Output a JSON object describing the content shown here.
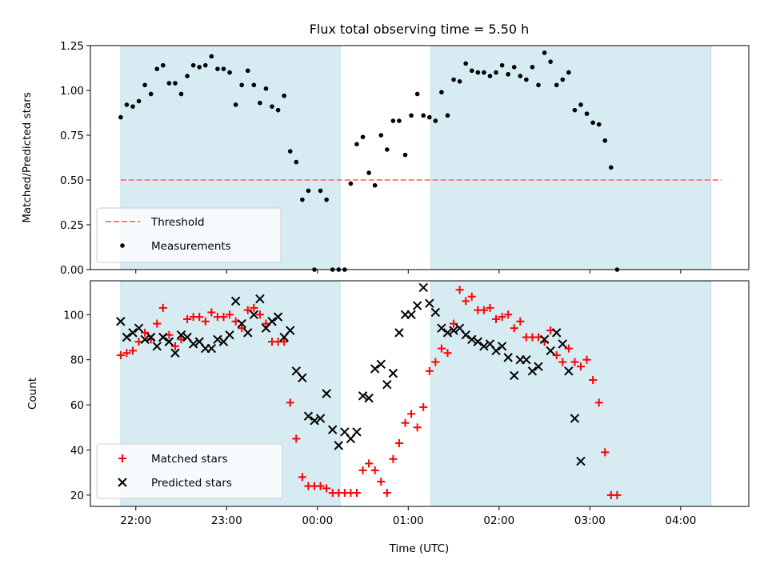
{
  "chart_data": [
    {
      "type": "scatter",
      "title": "Flux total observing time = 5.50 h",
      "xlabel": "",
      "ylabel": "Matched/Predicted stars",
      "xlim": [
        "21:30",
        "04:45"
      ],
      "ylim": [
        0,
        1.25
      ],
      "xticks": [
        "22:00",
        "23:00",
        "00:00",
        "01:00",
        "02:00",
        "03:00",
        "04:00"
      ],
      "xticks_labeled": false,
      "yticks": [
        "0.00",
        "0.25",
        "0.50",
        "0.75",
        "1.00",
        "1.25"
      ],
      "grid": false,
      "legend_position": "lower-left",
      "shaded_intervals": [
        [
          "21:50",
          "00:15"
        ],
        [
          "01:15",
          "04:20"
        ]
      ],
      "shade_color": "#add8e6",
      "threshold": {
        "name": "Threshold",
        "value": 0.5,
        "x": [
          "21:50",
          "04:27"
        ],
        "color": "#ff7f7f",
        "style": "dashed"
      },
      "series": [
        {
          "name": "Measurements",
          "color": "#000000",
          "marker": "dot",
          "points": [
            [
              "21:50",
              0.85
            ],
            [
              "21:54",
              0.92
            ],
            [
              "21:58",
              0.91
            ],
            [
              "22:02",
              0.94
            ],
            [
              "22:06",
              1.03
            ],
            [
              "22:10",
              0.98
            ],
            [
              "22:14",
              1.12
            ],
            [
              "22:18",
              1.14
            ],
            [
              "22:22",
              1.04
            ],
            [
              "22:26",
              1.04
            ],
            [
              "22:30",
              0.98
            ],
            [
              "22:34",
              1.08
            ],
            [
              "22:38",
              1.14
            ],
            [
              "22:42",
              1.13
            ],
            [
              "22:46",
              1.14
            ],
            [
              "22:50",
              1.19
            ],
            [
              "22:54",
              1.12
            ],
            [
              "22:58",
              1.12
            ],
            [
              "23:02",
              1.1
            ],
            [
              "23:06",
              0.92
            ],
            [
              "23:10",
              1.03
            ],
            [
              "23:14",
              1.11
            ],
            [
              "23:18",
              1.03
            ],
            [
              "23:22",
              0.93
            ],
            [
              "23:26",
              1.01
            ],
            [
              "23:30",
              0.91
            ],
            [
              "23:34",
              0.89
            ],
            [
              "23:38",
              0.97
            ],
            [
              "23:42",
              0.66
            ],
            [
              "23:46",
              0.6
            ],
            [
              "23:50",
              0.39
            ],
            [
              "23:54",
              0.44
            ],
            [
              "23:58",
              0.0
            ],
            [
              "00:02",
              0.44
            ],
            [
              "00:06",
              0.39
            ],
            [
              "00:10",
              0.0
            ],
            [
              "00:14",
              0.0
            ],
            [
              "00:18",
              0.0
            ],
            [
              "00:22",
              0.48
            ],
            [
              "00:26",
              0.7
            ],
            [
              "00:30",
              0.74
            ],
            [
              "00:34",
              0.54
            ],
            [
              "00:38",
              0.47
            ],
            [
              "00:42",
              0.75
            ],
            [
              "00:46",
              0.67
            ],
            [
              "00:50",
              0.83
            ],
            [
              "00:54",
              0.83
            ],
            [
              "00:58",
              0.64
            ],
            [
              "01:02",
              0.86
            ],
            [
              "01:06",
              0.98
            ],
            [
              "01:10",
              0.86
            ],
            [
              "01:14",
              0.85
            ],
            [
              "01:18",
              0.83
            ],
            [
              "01:22",
              0.99
            ],
            [
              "01:26",
              0.86
            ],
            [
              "01:30",
              1.06
            ],
            [
              "01:34",
              1.05
            ],
            [
              "01:38",
              1.15
            ],
            [
              "01:42",
              1.11
            ],
            [
              "01:46",
              1.1
            ],
            [
              "01:50",
              1.1
            ],
            [
              "01:54",
              1.08
            ],
            [
              "01:58",
              1.1
            ],
            [
              "02:02",
              1.14
            ],
            [
              "02:06",
              1.09
            ],
            [
              "02:10",
              1.13
            ],
            [
              "02:14",
              1.08
            ],
            [
              "02:18",
              1.06
            ],
            [
              "02:22",
              1.13
            ],
            [
              "02:26",
              1.03
            ],
            [
              "02:30",
              1.21
            ],
            [
              "02:34",
              1.16
            ],
            [
              "02:38",
              1.03
            ],
            [
              "02:42",
              1.06
            ],
            [
              "02:46",
              1.1
            ],
            [
              "02:50",
              0.89
            ],
            [
              "02:54",
              0.92
            ],
            [
              "02:58",
              0.87
            ],
            [
              "03:02",
              0.82
            ],
            [
              "03:06",
              0.81
            ],
            [
              "03:10",
              0.72
            ],
            [
              "03:14",
              0.57
            ],
            [
              "03:18",
              0.0
            ]
          ]
        }
      ]
    },
    {
      "type": "scatter",
      "title": "",
      "xlabel": "Time (UTC)",
      "ylabel": "Count",
      "xlim": [
        "21:30",
        "04:45"
      ],
      "ylim": [
        15,
        115
      ],
      "xticks": [
        "22:00",
        "23:00",
        "00:00",
        "01:00",
        "02:00",
        "03:00",
        "04:00"
      ],
      "yticks": [
        "20",
        "40",
        "60",
        "80",
        "100"
      ],
      "grid": false,
      "legend_position": "lower-left",
      "shaded_intervals": [
        [
          "21:50",
          "00:15"
        ],
        [
          "01:15",
          "04:20"
        ]
      ],
      "shade_color": "#add8e6",
      "series": [
        {
          "name": "Matched stars",
          "color": "#ff0000",
          "marker": "plus",
          "points": [
            [
              "21:50",
              82
            ],
            [
              "21:54",
              83
            ],
            [
              "21:58",
              84
            ],
            [
              "22:02",
              88
            ],
            [
              "22:06",
              92
            ],
            [
              "22:10",
              89
            ],
            [
              "22:14",
              96
            ],
            [
              "22:18",
              103
            ],
            [
              "22:22",
              91
            ],
            [
              "22:26",
              86
            ],
            [
              "22:30",
              89
            ],
            [
              "22:34",
              98
            ],
            [
              "22:38",
              99
            ],
            [
              "22:42",
              99
            ],
            [
              "22:46",
              97
            ],
            [
              "22:50",
              101
            ],
            [
              "22:54",
              99
            ],
            [
              "22:58",
              99
            ],
            [
              "23:02",
              100
            ],
            [
              "23:06",
              97
            ],
            [
              "23:10",
              94
            ],
            [
              "23:14",
              102
            ],
            [
              "23:18",
              103
            ],
            [
              "23:22",
              100
            ],
            [
              "23:26",
              96
            ],
            [
              "23:30",
              88
            ],
            [
              "23:34",
              88
            ],
            [
              "23:38",
              88
            ],
            [
              "23:42",
              61
            ],
            [
              "23:46",
              45
            ],
            [
              "23:50",
              28
            ],
            [
              "23:54",
              24
            ],
            [
              "23:58",
              24
            ],
            [
              "00:02",
              24
            ],
            [
              "00:06",
              23
            ],
            [
              "00:10",
              21
            ],
            [
              "00:14",
              21
            ],
            [
              "00:18",
              21
            ],
            [
              "00:22",
              21
            ],
            [
              "00:26",
              21
            ],
            [
              "00:30",
              31
            ],
            [
              "00:34",
              34
            ],
            [
              "00:38",
              31
            ],
            [
              "00:42",
              26
            ],
            [
              "00:46",
              21
            ],
            [
              "00:50",
              36
            ],
            [
              "00:54",
              43
            ],
            [
              "00:58",
              52
            ],
            [
              "01:02",
              56
            ],
            [
              "01:06",
              50
            ],
            [
              "01:10",
              59
            ],
            [
              "01:14",
              75
            ],
            [
              "01:18",
              79
            ],
            [
              "01:22",
              85
            ],
            [
              "01:26",
              83
            ],
            [
              "01:30",
              96
            ],
            [
              "01:34",
              111
            ],
            [
              "01:38",
              106
            ],
            [
              "01:42",
              108
            ],
            [
              "01:46",
              102
            ],
            [
              "01:50",
              102
            ],
            [
              "01:54",
              103
            ],
            [
              "01:58",
              98
            ],
            [
              "02:02",
              99
            ],
            [
              "02:06",
              100
            ],
            [
              "02:10",
              94
            ],
            [
              "02:14",
              97
            ],
            [
              "02:18",
              90
            ],
            [
              "02:22",
              90
            ],
            [
              "02:26",
              90
            ],
            [
              "02:30",
              88
            ],
            [
              "02:34",
              93
            ],
            [
              "02:38",
              82
            ],
            [
              "02:42",
              79
            ],
            [
              "02:46",
              85
            ],
            [
              "02:50",
              79
            ],
            [
              "02:54",
              77
            ],
            [
              "02:58",
              80
            ],
            [
              "03:02",
              71
            ],
            [
              "03:06",
              61
            ],
            [
              "03:10",
              39
            ],
            [
              "03:14",
              20
            ],
            [
              "03:18",
              20
            ]
          ]
        },
        {
          "name": "Predicted stars",
          "color": "#000000",
          "marker": "x",
          "points": [
            [
              "21:50",
              97
            ],
            [
              "21:54",
              90
            ],
            [
              "21:58",
              92
            ],
            [
              "22:02",
              94
            ],
            [
              "22:06",
              89
            ],
            [
              "22:10",
              90
            ],
            [
              "22:14",
              86
            ],
            [
              "22:18",
              90
            ],
            [
              "22:22",
              88
            ],
            [
              "22:26",
              83
            ],
            [
              "22:30",
              91
            ],
            [
              "22:34",
              90
            ],
            [
              "22:38",
              87
            ],
            [
              "22:42",
              88
            ],
            [
              "22:46",
              85
            ],
            [
              "22:50",
              85
            ],
            [
              "22:54",
              89
            ],
            [
              "22:58",
              88
            ],
            [
              "23:02",
              91
            ],
            [
              "23:06",
              106
            ],
            [
              "23:10",
              96
            ],
            [
              "23:14",
              92
            ],
            [
              "23:18",
              100
            ],
            [
              "23:22",
              107
            ],
            [
              "23:26",
              94
            ],
            [
              "23:30",
              97
            ],
            [
              "23:34",
              99
            ],
            [
              "23:38",
              90
            ],
            [
              "23:42",
              93
            ],
            [
              "23:46",
              75
            ],
            [
              "23:50",
              72
            ],
            [
              "23:54",
              55
            ],
            [
              "23:58",
              53
            ],
            [
              "00:02",
              54
            ],
            [
              "00:06",
              65
            ],
            [
              "00:10",
              49
            ],
            [
              "00:14",
              42
            ],
            [
              "00:18",
              48
            ],
            [
              "00:22",
              45
            ],
            [
              "00:26",
              48
            ],
            [
              "00:30",
              64
            ],
            [
              "00:34",
              63
            ],
            [
              "00:38",
              76
            ],
            [
              "00:42",
              78
            ],
            [
              "00:46",
              69
            ],
            [
              "00:50",
              74
            ],
            [
              "00:54",
              92
            ],
            [
              "00:58",
              100
            ],
            [
              "01:02",
              100
            ],
            [
              "01:06",
              104
            ],
            [
              "01:10",
              112
            ],
            [
              "01:14",
              105
            ],
            [
              "01:18",
              101
            ],
            [
              "01:22",
              94
            ],
            [
              "01:26",
              92
            ],
            [
              "01:30",
              93
            ],
            [
              "01:34",
              94
            ],
            [
              "01:38",
              91
            ],
            [
              "01:42",
              89
            ],
            [
              "01:46",
              88
            ],
            [
              "01:50",
              86
            ],
            [
              "01:54",
              87
            ],
            [
              "01:58",
              84
            ],
            [
              "02:02",
              86
            ],
            [
              "02:06",
              81
            ],
            [
              "02:10",
              73
            ],
            [
              "02:14",
              80
            ],
            [
              "02:18",
              80
            ],
            [
              "02:22",
              75
            ],
            [
              "02:26",
              77
            ],
            [
              "02:30",
              89
            ],
            [
              "02:34",
              84
            ],
            [
              "02:38",
              92
            ],
            [
              "02:42",
              87
            ],
            [
              "02:46",
              75
            ],
            [
              "02:50",
              54
            ],
            [
              "02:54",
              35
            ]
          ]
        }
      ]
    }
  ]
}
